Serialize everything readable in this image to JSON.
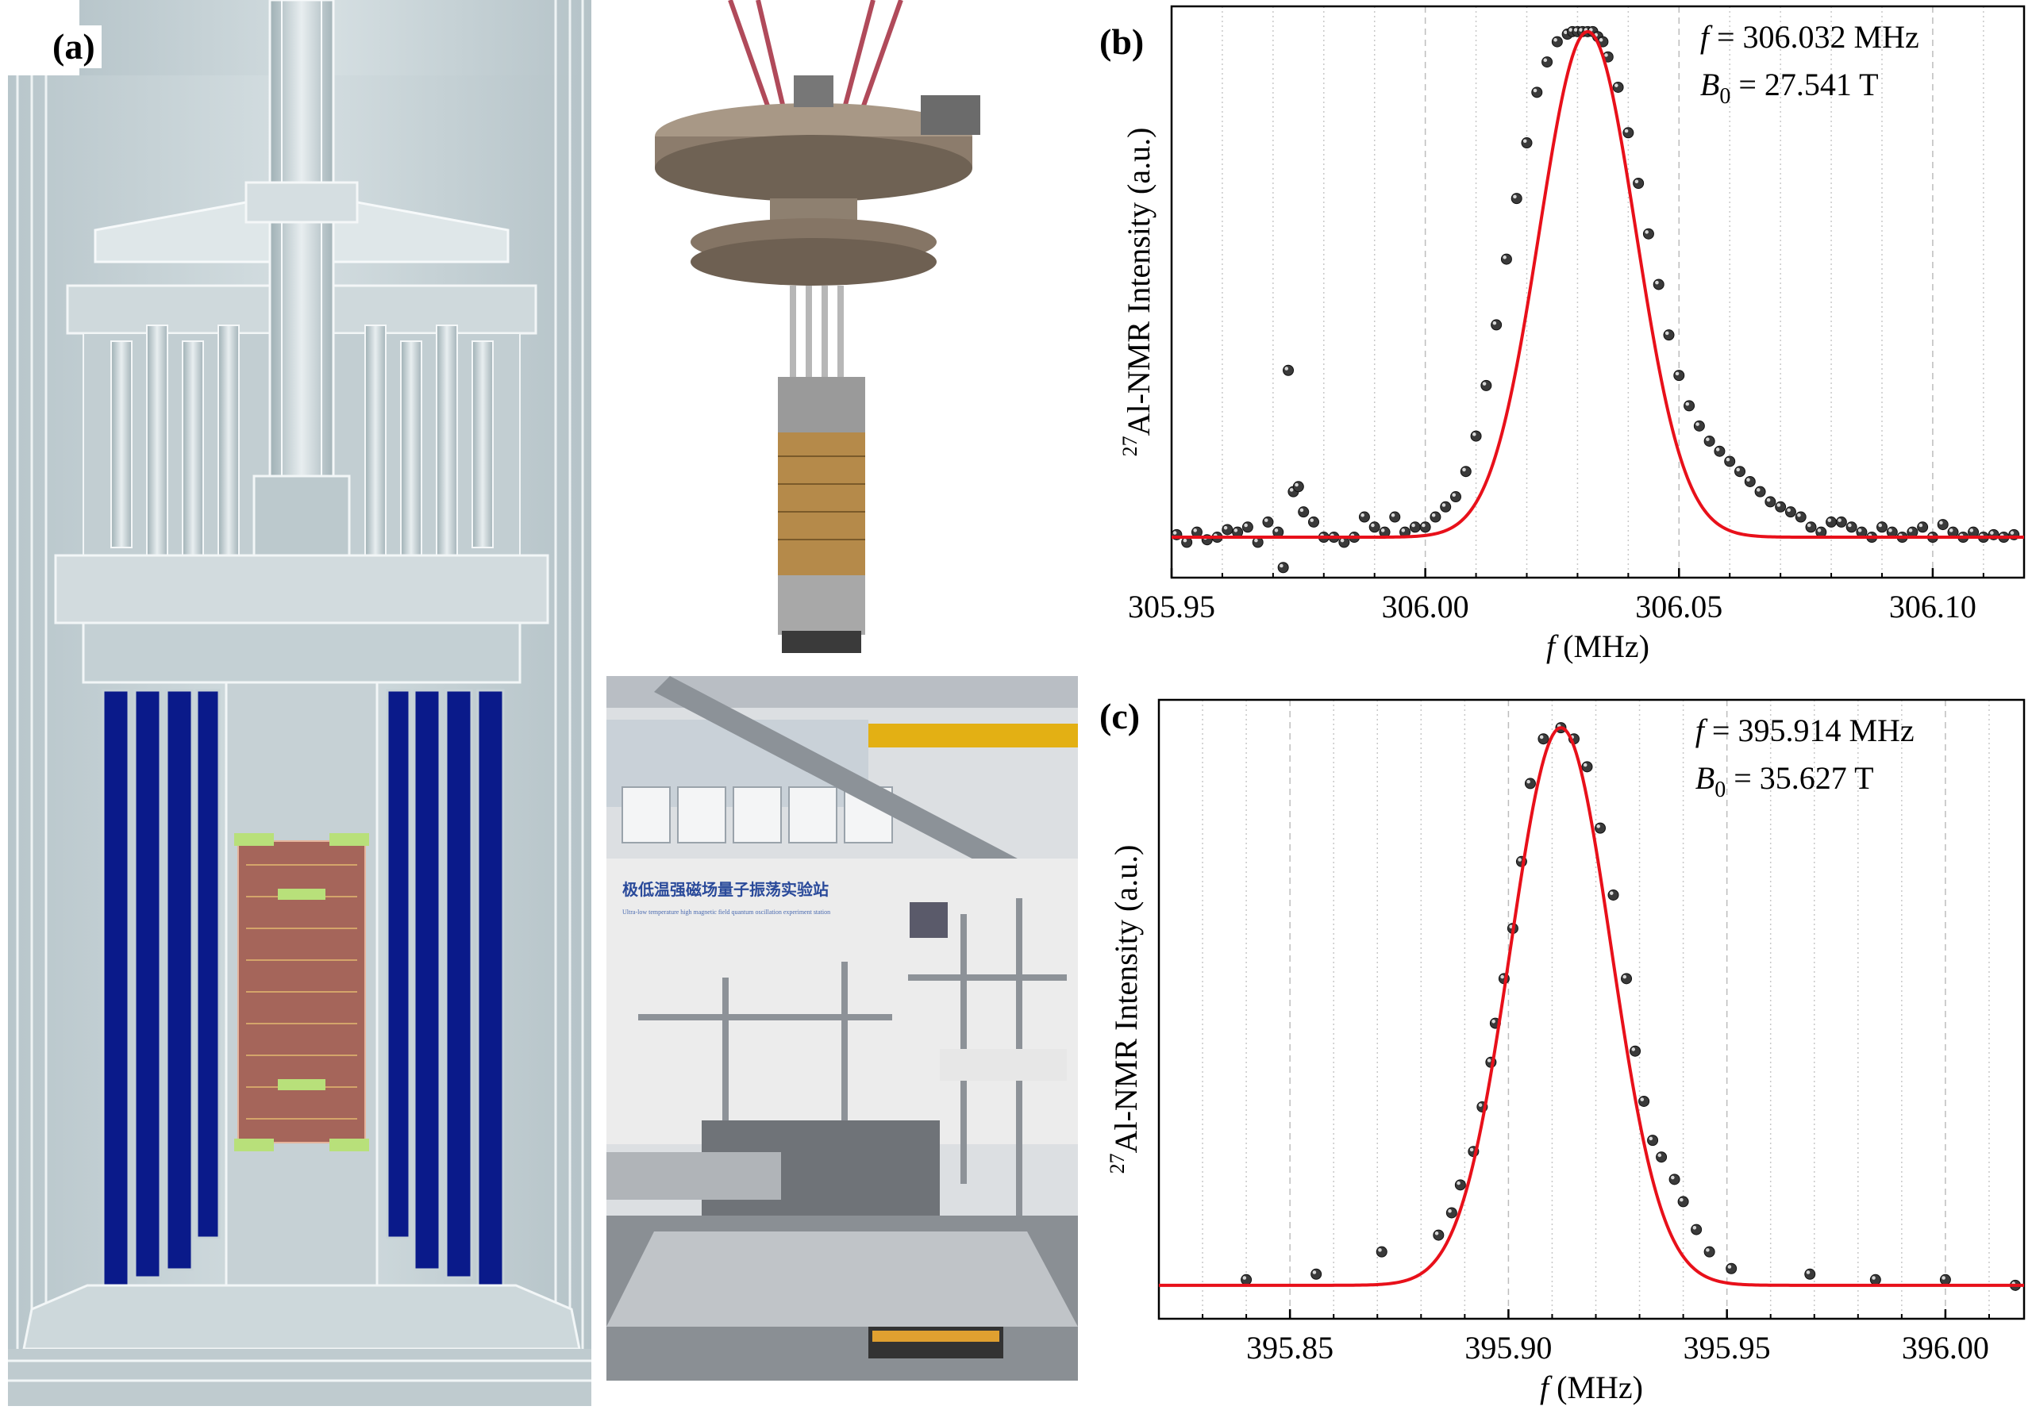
{
  "panels": {
    "a": {
      "label": "(a)"
    },
    "b": {
      "label": "(b)"
    },
    "c": {
      "label": "(c)"
    }
  },
  "photos": {
    "banner_line1": "极低温强磁场量子振荡实验站",
    "banner_line2": "Ultra-low temperature high magnetic field quantum oscillation experiment station"
  },
  "colors": {
    "fit_line": "#e8101a",
    "data_point": "#3a3a3a",
    "coil_blue": "#0a1a8a",
    "sample_brown": "#a5655a",
    "insulator_green": "#b8e07a",
    "cad_gray": "#c8d4d8"
  },
  "chart_data": [
    {
      "panel": "(b)",
      "type": "scatter",
      "xlabel_var": "f",
      "xlabel_unit": "(MHz)",
      "ylabel_sup": "27",
      "ylabel_text": "Al-NMR Intensity (a.u.)",
      "annotation_f_var": "f",
      "annotation_f_val": " = 306.032 MHz",
      "annotation_b_var": "B",
      "annotation_b_sub": "0",
      "annotation_b_val": " = 27.541 T",
      "xlim": [
        305.95,
        306.118
      ],
      "ylim": [
        -0.08,
        1.05
      ],
      "xticks": [
        305.95,
        306.0,
        306.05,
        306.1
      ],
      "xtick_labels": [
        "305.95",
        "306.00",
        "306.05",
        "306.10"
      ],
      "dashed_grid_x": [
        306.0,
        306.05,
        306.1
      ],
      "dotted_grid_step": 0.01,
      "fit": {
        "center": 306.032,
        "sigma": 0.0095,
        "amplitude": 1.0,
        "baseline": 0.0
      },
      "series": [
        {
          "x": [
            305.951,
            305.953,
            305.955,
            305.957,
            305.959,
            305.961,
            305.963,
            305.965,
            305.967,
            305.969,
            305.971,
            305.972,
            305.973,
            305.974,
            305.975,
            305.976,
            305.978,
            305.98,
            305.982,
            305.984,
            305.986,
            305.988,
            305.99,
            305.992,
            305.994,
            305.996,
            305.998,
            306.0,
            306.002,
            306.004,
            306.006,
            306.008,
            306.01,
            306.012,
            306.014,
            306.016,
            306.018,
            306.02,
            306.022,
            306.024,
            306.026,
            306.028,
            306.029,
            306.03,
            306.031,
            306.032,
            306.033,
            306.034,
            306.035,
            306.036,
            306.038,
            306.04,
            306.042,
            306.044,
            306.046,
            306.048,
            306.05,
            306.052,
            306.054,
            306.056,
            306.058,
            306.06,
            306.062,
            306.064,
            306.066,
            306.068,
            306.07,
            306.072,
            306.074,
            306.076,
            306.078,
            306.08,
            306.082,
            306.084,
            306.086,
            306.088,
            306.09,
            306.092,
            306.094,
            306.096,
            306.098,
            306.1,
            306.102,
            306.104,
            306.106,
            306.108,
            306.11,
            306.112,
            306.114,
            306.116
          ],
          "y": [
            0.005,
            -0.01,
            0.01,
            -0.005,
            0.0,
            0.015,
            0.01,
            0.02,
            -0.01,
            0.03,
            0.01,
            -0.06,
            0.33,
            0.09,
            0.1,
            0.05,
            0.03,
            0.0,
            0.0,
            -0.01,
            0.0,
            0.04,
            0.02,
            0.01,
            0.04,
            0.01,
            0.02,
            0.02,
            0.04,
            0.06,
            0.08,
            0.13,
            0.2,
            0.3,
            0.42,
            0.55,
            0.67,
            0.78,
            0.88,
            0.94,
            0.98,
            0.995,
            1.0,
            1.0,
            1.0,
            1.0,
            1.0,
            0.99,
            0.98,
            0.95,
            0.89,
            0.8,
            0.7,
            0.6,
            0.5,
            0.4,
            0.32,
            0.26,
            0.22,
            0.19,
            0.17,
            0.15,
            0.13,
            0.11,
            0.09,
            0.07,
            0.06,
            0.05,
            0.04,
            0.02,
            0.01,
            0.03,
            0.03,
            0.02,
            0.01,
            0.0,
            0.02,
            0.01,
            0.0,
            0.01,
            0.02,
            0.0,
            0.025,
            0.01,
            0.0,
            0.01,
            0.0,
            0.005,
            0.0,
            0.005
          ]
        }
      ]
    },
    {
      "panel": "(c)",
      "type": "scatter",
      "xlabel_var": "f",
      "xlabel_unit": "(MHz)",
      "ylabel_sup": "27",
      "ylabel_text": "Al-NMR Intensity (a.u.)",
      "annotation_f_var": "f",
      "annotation_f_val": " = 395.914 MHz",
      "annotation_b_var": "B",
      "annotation_b_sub": "0",
      "annotation_b_val": " = 35.627 T",
      "xlim": [
        395.82,
        396.018
      ],
      "ylim": [
        -0.06,
        1.05
      ],
      "xticks": [
        395.85,
        395.9,
        395.95,
        396.0
      ],
      "xtick_labels": [
        "395.85",
        "395.90",
        "395.95",
        "396.00"
      ],
      "dashed_grid_x": [
        395.85,
        395.9,
        395.95,
        396.0
      ],
      "dotted_grid_step": 0.01,
      "fit": {
        "center": 395.912,
        "sigma": 0.0115,
        "amplitude": 1.0,
        "baseline": 0.0
      },
      "series": [
        {
          "x": [
            395.84,
            395.856,
            395.871,
            395.884,
            395.887,
            395.889,
            395.892,
            395.894,
            395.896,
            395.897,
            395.899,
            395.901,
            395.903,
            395.905,
            395.908,
            395.912,
            395.915,
            395.918,
            395.921,
            395.924,
            395.927,
            395.929,
            395.931,
            395.933,
            395.935,
            395.938,
            395.94,
            395.943,
            395.946,
            395.951,
            395.969,
            395.984,
            396.0,
            396.016
          ],
          "y": [
            0.01,
            0.02,
            0.06,
            0.09,
            0.13,
            0.18,
            0.24,
            0.32,
            0.4,
            0.47,
            0.55,
            0.64,
            0.76,
            0.9,
            0.98,
            1.0,
            0.98,
            0.93,
            0.82,
            0.7,
            0.55,
            0.42,
            0.33,
            0.26,
            0.23,
            0.19,
            0.15,
            0.1,
            0.06,
            0.03,
            0.02,
            0.01,
            0.01,
            0.0
          ]
        }
      ]
    }
  ]
}
